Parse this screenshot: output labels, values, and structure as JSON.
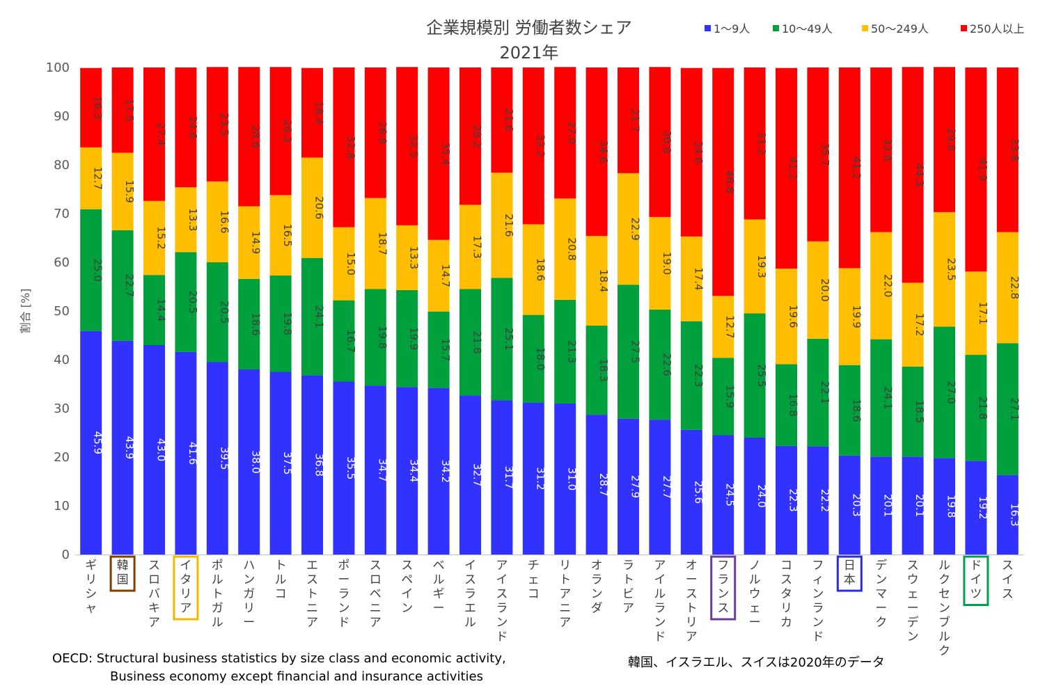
{
  "chart_data": {
    "type": "stacked-bar",
    "title": "企業規模別 労働者数シェア",
    "subtitle": "2021年",
    "ylabel": "割合 [%]",
    "ylim": [
      0,
      100
    ],
    "yticks": [
      0,
      10,
      20,
      30,
      40,
      50,
      60,
      70,
      80,
      90,
      100
    ],
    "categories": [
      "ギリシャ",
      "韓国",
      "スロバキア",
      "イタリア",
      "ポルトガル",
      "ハンガリー",
      "トルコ",
      "エストニア",
      "ポーランド",
      "スロベニア",
      "スペイン",
      "ベルギー",
      "イスラエル",
      "アイスランド",
      "チェコ",
      "リトアニア",
      "オランダ",
      "ラトビア",
      "アイルランド",
      "オーストリア",
      "フランス",
      "ノルウェー",
      "コスタリカ",
      "フィンランド",
      "日本",
      "デンマーク",
      "スウェーデン",
      "ルクセンブルク",
      "ドイツ",
      "スイス"
    ],
    "highlighted": [
      {
        "category": "韓国",
        "color": "#7f3f00"
      },
      {
        "category": "イタリア",
        "color": "#f5b800"
      },
      {
        "category": "フランス",
        "color": "#6a3d9a"
      },
      {
        "category": "日本",
        "color": "#2b2bdc"
      },
      {
        "category": "ドイツ",
        "color": "#00a050"
      }
    ],
    "series": [
      {
        "name": "1～9人",
        "color": "#3232ff",
        "values": [
          45.9,
          43.9,
          43.0,
          41.6,
          39.5,
          38.0,
          37.5,
          36.8,
          35.5,
          34.7,
          34.4,
          34.2,
          32.7,
          31.7,
          31.2,
          31.0,
          28.7,
          27.9,
          27.7,
          25.6,
          24.5,
          24.0,
          22.3,
          22.2,
          20.3,
          20.1,
          20.1,
          19.8,
          19.2,
          16.3
        ]
      },
      {
        "name": "10～49人",
        "color": "#00a03c",
        "values": [
          25.0,
          22.7,
          14.4,
          20.5,
          20.5,
          18.6,
          19.8,
          24.1,
          16.7,
          19.8,
          19.9,
          15.7,
          21.8,
          25.1,
          18.0,
          21.3,
          18.3,
          27.5,
          22.6,
          22.3,
          15.9,
          25.5,
          16.8,
          22.1,
          18.6,
          24.1,
          18.5,
          27.0,
          21.8,
          27.1
        ]
      },
      {
        "name": "50～249人",
        "color": "#ffbe00",
        "values": [
          12.7,
          15.9,
          15.2,
          13.3,
          16.6,
          14.9,
          16.5,
          20.6,
          15.0,
          18.7,
          13.3,
          14.7,
          17.3,
          21.6,
          18.6,
          20.8,
          18.4,
          22.9,
          19.0,
          17.4,
          12.7,
          19.3,
          19.6,
          20.0,
          19.9,
          22.0,
          17.2,
          23.5,
          17.1,
          22.8
        ]
      },
      {
        "name": "250人以上",
        "color": "#ff0000",
        "values": [
          16.3,
          17.5,
          27.4,
          24.6,
          23.5,
          28.6,
          26.3,
          18.4,
          32.8,
          26.8,
          32.5,
          35.4,
          28.2,
          21.6,
          32.2,
          27.0,
          34.6,
          21.7,
          30.8,
          34.6,
          46.8,
          31.2,
          41.2,
          35.7,
          41.2,
          33.8,
          44.3,
          29.8,
          41.9,
          33.8
        ]
      }
    ]
  },
  "legend": {
    "items": [
      {
        "label": "1～9人",
        "color": "#3232ff"
      },
      {
        "label": "10～49人",
        "color": "#00a03c"
      },
      {
        "label": "50～249人",
        "color": "#ffbe00"
      },
      {
        "label": "250人以上",
        "color": "#ff0000"
      }
    ]
  },
  "source": {
    "line1": "OECD: Structural business statistics by size class and economic activity,",
    "line2": "Business economy except financial and insurance activities"
  },
  "note": "韓国、イスラエル、スイスは2020年のデータ"
}
